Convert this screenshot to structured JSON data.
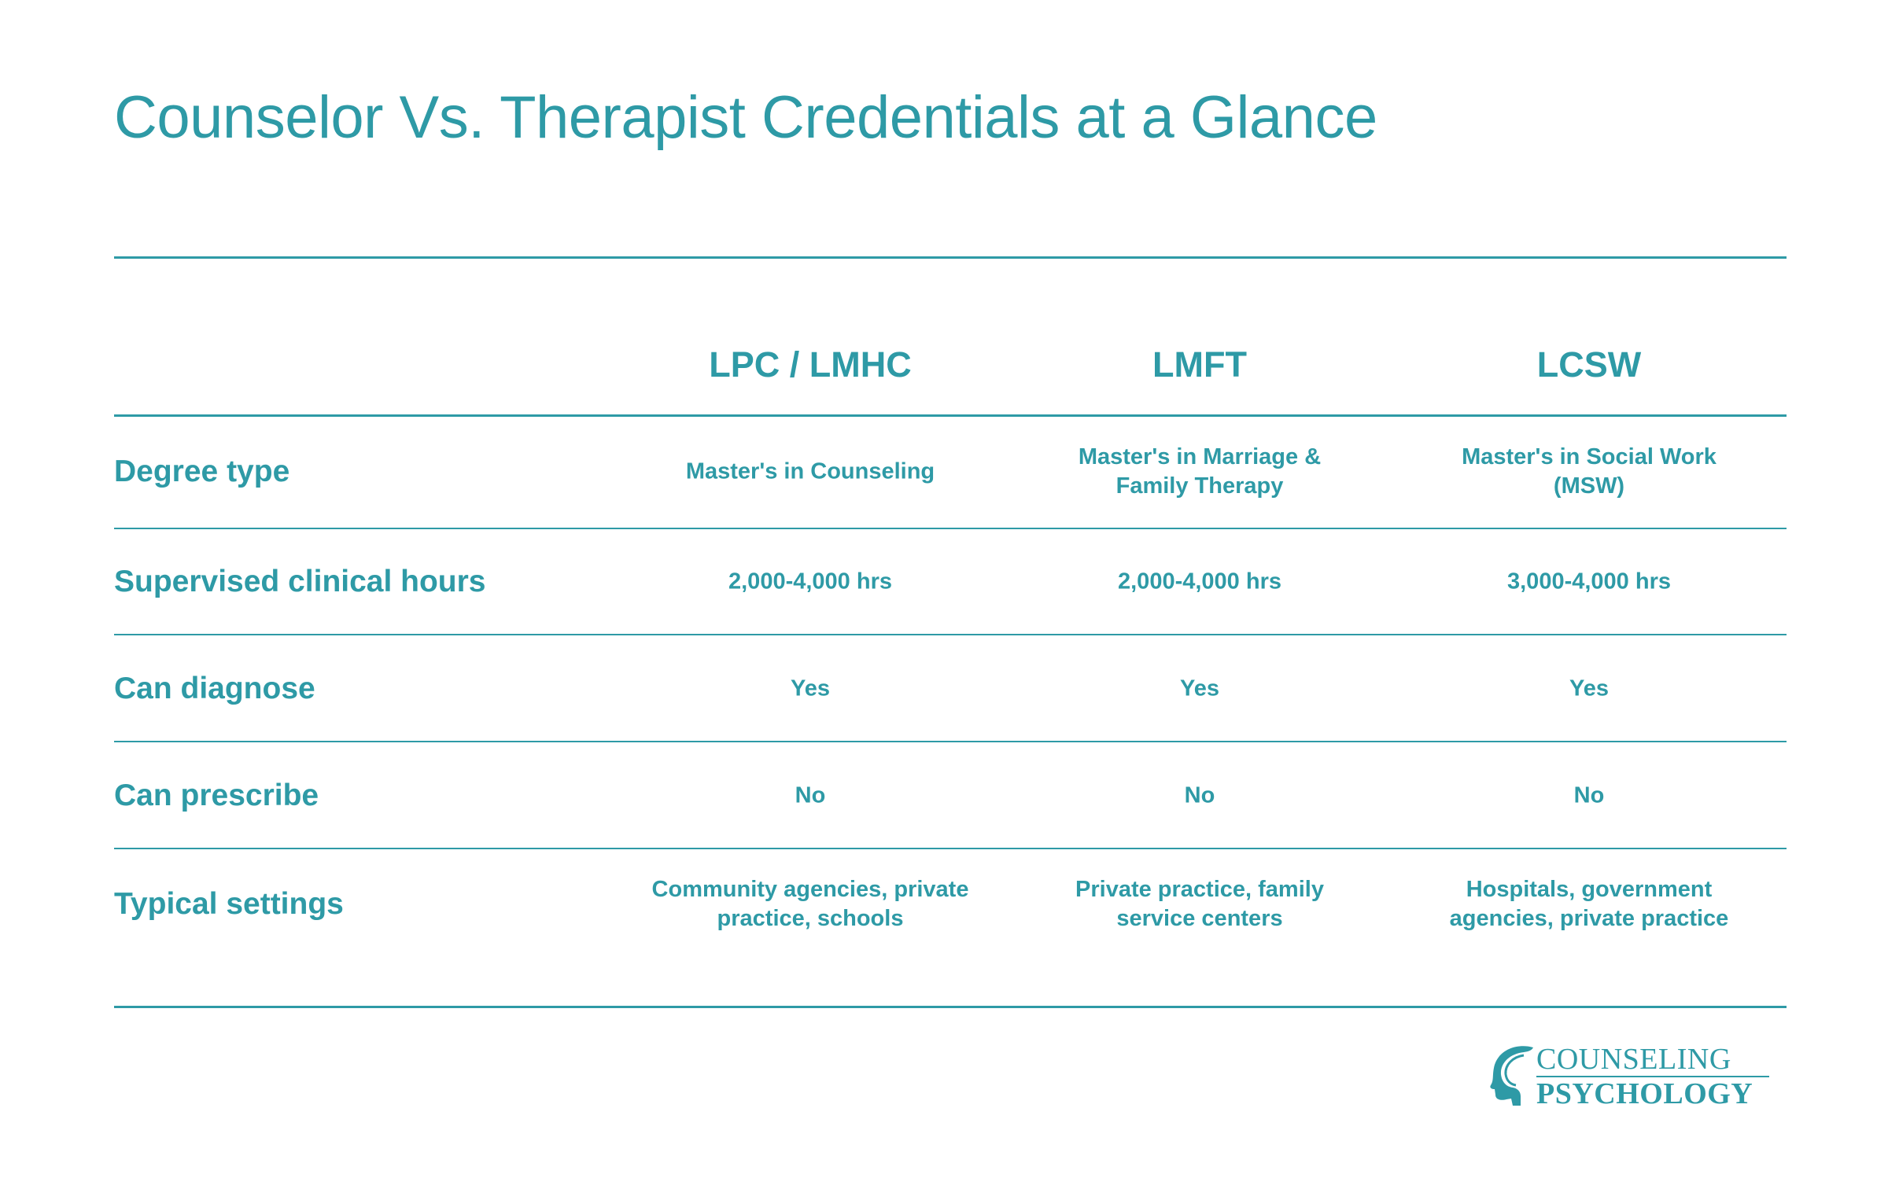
{
  "title": "Counselor Vs. Therapist Credentials at a Glance",
  "accent_color": "#2e9aa6",
  "table": {
    "columns": [
      "LPC / LMHC",
      "LMFT",
      "LCSW"
    ],
    "rows": [
      {
        "label": "Degree type",
        "cells": [
          [
            "Master's in Counseling"
          ],
          [
            "Master's in Marriage &",
            "Family Therapy"
          ],
          [
            "Master's in Social Work",
            "(MSW)"
          ]
        ]
      },
      {
        "label": "Supervised clinical hours",
        "cells": [
          [
            "2,000-4,000 hrs"
          ],
          [
            "2,000-4,000 hrs"
          ],
          [
            "3,000-4,000 hrs"
          ]
        ]
      },
      {
        "label": "Can diagnose",
        "cells": [
          [
            "Yes"
          ],
          [
            "Yes"
          ],
          [
            "Yes"
          ]
        ]
      },
      {
        "label": "Can prescribe",
        "cells": [
          [
            "No"
          ],
          [
            "No"
          ],
          [
            "No"
          ]
        ]
      },
      {
        "label": "Typical settings",
        "cells": [
          [
            "Community agencies, private",
            "practice, schools"
          ],
          [
            "Private practice, family",
            "service centers"
          ],
          [
            "Hospitals, government",
            "agencies, private practice"
          ]
        ]
      }
    ]
  },
  "logo": {
    "line1": "COUNSELING",
    "line2": "PSYCHOLOGY",
    "icon": "head-profile-icon"
  }
}
